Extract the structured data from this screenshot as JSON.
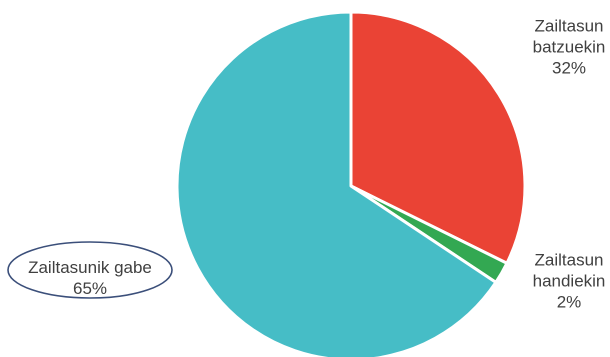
{
  "chart_data": {
    "type": "pie",
    "title": "",
    "start_angle_deg": 0,
    "direction": "clockwise",
    "slices": [
      {
        "label_lines": [
          "Zailtasun",
          "batzuekin"
        ],
        "value_label": "32%",
        "value": 32,
        "color": "#ea4335"
      },
      {
        "label_lines": [
          "Zailtasun",
          "handiekin"
        ],
        "value_label": "2%",
        "value": 2,
        "color": "#33a852"
      },
      {
        "label_lines": [
          "Zailtasunik gabe"
        ],
        "value_label": "65%",
        "value": 65,
        "color": "#46bdc6"
      }
    ],
    "highlight": {
      "slice_index": 2,
      "shape": "ellipse",
      "color": "#3b4f7a"
    },
    "slice_border_color": "#ffffff",
    "legend": "none"
  }
}
